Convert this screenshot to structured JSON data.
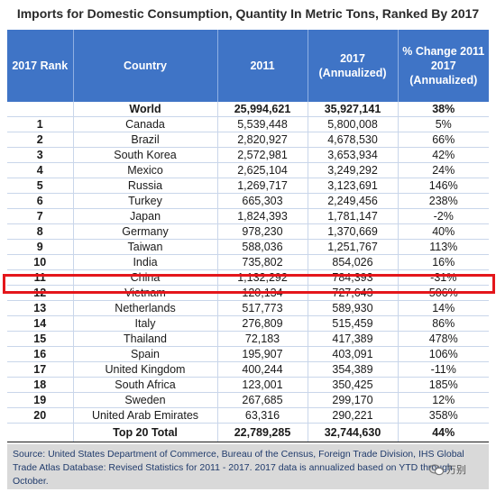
{
  "title": "Imports for Domestic Consumption, Quantity In Metric Tons, Ranked By 2017",
  "headers": {
    "rank": "2017 Rank",
    "country": "Country",
    "y2011": "2011",
    "y2017": "2017 (Annualized)",
    "pct": "% Change 2011 2017 (Annualized)"
  },
  "world": {
    "rank": "",
    "country": "World",
    "y2011": "25,994,621",
    "y2017": "35,927,141",
    "pct": "38%"
  },
  "rows": [
    {
      "rank": "1",
      "country": "Canada",
      "y2011": "5,539,448",
      "y2017": "5,800,008",
      "pct": "5%"
    },
    {
      "rank": "2",
      "country": "Brazil",
      "y2011": "2,820,927",
      "y2017": "4,678,530",
      "pct": "66%"
    },
    {
      "rank": "3",
      "country": "South Korea",
      "y2011": "2,572,981",
      "y2017": "3,653,934",
      "pct": "42%"
    },
    {
      "rank": "4",
      "country": "Mexico",
      "y2011": "2,625,104",
      "y2017": "3,249,292",
      "pct": "24%"
    },
    {
      "rank": "5",
      "country": "Russia",
      "y2011": "1,269,717",
      "y2017": "3,123,691",
      "pct": "146%"
    },
    {
      "rank": "6",
      "country": "Turkey",
      "y2011": "665,303",
      "y2017": "2,249,456",
      "pct": "238%"
    },
    {
      "rank": "7",
      "country": "Japan",
      "y2011": "1,824,393",
      "y2017": "1,781,147",
      "pct": "-2%"
    },
    {
      "rank": "8",
      "country": "Germany",
      "y2011": "978,230",
      "y2017": "1,370,669",
      "pct": "40%"
    },
    {
      "rank": "9",
      "country": "Taiwan",
      "y2011": "588,036",
      "y2017": "1,251,767",
      "pct": "113%"
    },
    {
      "rank": "10",
      "country": "India",
      "y2011": "735,802",
      "y2017": "854,026",
      "pct": "16%"
    },
    {
      "rank": "11",
      "country": "China",
      "y2011": "1,132,292",
      "y2017": "784,393",
      "pct": "-31%"
    },
    {
      "rank": "12",
      "country": "Vietnam",
      "y2011": "120,134",
      "y2017": "727,643",
      "pct": "506%"
    },
    {
      "rank": "13",
      "country": "Netherlands",
      "y2011": "517,773",
      "y2017": "589,930",
      "pct": "14%"
    },
    {
      "rank": "14",
      "country": "Italy",
      "y2011": "276,809",
      "y2017": "515,459",
      "pct": "86%"
    },
    {
      "rank": "15",
      "country": "Thailand",
      "y2011": "72,183",
      "y2017": "417,389",
      "pct": "478%"
    },
    {
      "rank": "16",
      "country": "Spain",
      "y2011": "195,907",
      "y2017": "403,091",
      "pct": "106%"
    },
    {
      "rank": "17",
      "country": "United Kingdom",
      "y2011": "400,244",
      "y2017": "354,389",
      "pct": "-11%"
    },
    {
      "rank": "18",
      "country": "South Africa",
      "y2011": "123,001",
      "y2017": "350,425",
      "pct": "185%"
    },
    {
      "rank": "19",
      "country": "Sweden",
      "y2011": "267,685",
      "y2017": "299,170",
      "pct": "12%"
    },
    {
      "rank": "20",
      "country": "United Arab Emirates",
      "y2011": "63,316",
      "y2017": "290,221",
      "pct": "358%"
    }
  ],
  "total": {
    "rank": "",
    "country": "Top 20 Total",
    "y2011": "22,789,285",
    "y2017": "32,744,630",
    "pct": "44%"
  },
  "source": "Source: United States Department of Commerce, Bureau of the Census, Foreign Trade Division, IHS Global Trade Atlas Database: Revised Statistics for 2011 - 2017. 2017 data is annualized based on YTD through October.",
  "watermark": "万别",
  "colors": {
    "header_bg": "#3f74c6",
    "highlight": "#e4161b",
    "source_bg": "#d9d9d9"
  }
}
